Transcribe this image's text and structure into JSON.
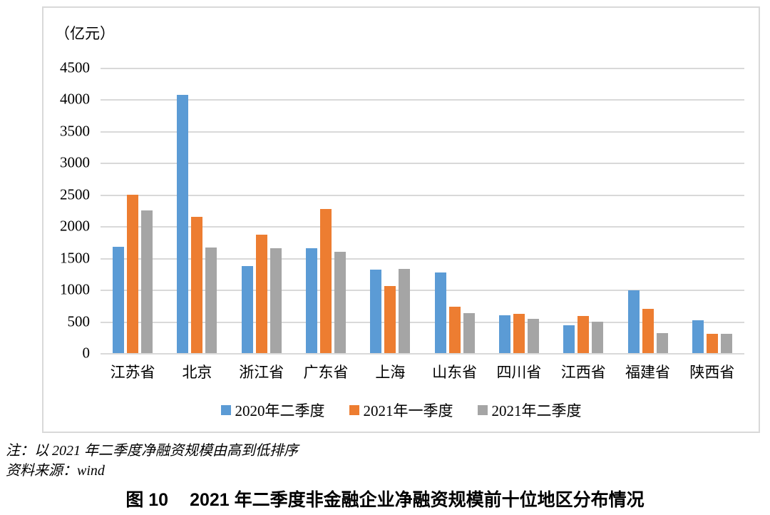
{
  "chart": {
    "unit_label": "（亿元）"
  },
  "chart_data": {
    "type": "bar",
    "title": "2021年二季度非金融企业净融资规模前十位地区分布情况",
    "unit": "亿元",
    "categories": [
      "江苏省",
      "北京",
      "浙江省",
      "广东省",
      "上海",
      "山东省",
      "四川省",
      "江西省",
      "福建省",
      "陕西省"
    ],
    "series": [
      {
        "name": "2020年二季度",
        "color": "#5B9BD5",
        "values": [
          1680,
          4070,
          1370,
          1650,
          1320,
          1270,
          600,
          440,
          990,
          520
        ]
      },
      {
        "name": "2021年一季度",
        "color": "#ED7D31",
        "values": [
          2500,
          2150,
          1870,
          2270,
          1060,
          730,
          620,
          590,
          700,
          300
        ]
      },
      {
        "name": "2021年二季度",
        "color": "#A5A5A5",
        "values": [
          2250,
          1660,
          1650,
          1600,
          1330,
          630,
          540,
          490,
          320,
          300
        ]
      }
    ],
    "ylim": [
      0,
      4500
    ],
    "ytick_step": 500,
    "grid": true,
    "legend_position": "bottom",
    "sort_order": "descending by 2021年二季度"
  },
  "notes": {
    "note": "注：以 2021 年二季度净融资规模由高到低排序",
    "source": "资料来源：wind"
  },
  "caption": {
    "figure_label": "图 10",
    "title": "2021 年二季度非金融企业净融资规模前十位地区分布情况"
  }
}
